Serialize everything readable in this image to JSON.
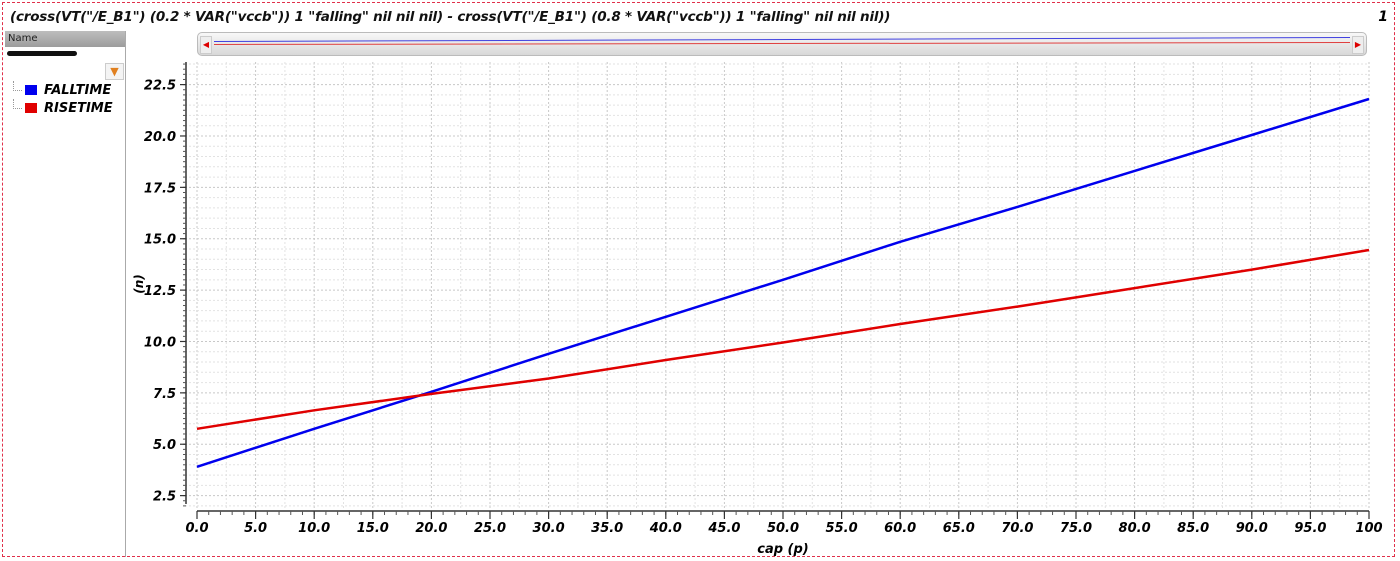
{
  "title": "(cross(VT(\"/E_B1\") (0.2 * VAR(\"vccb\")) 1 \"falling\" nil nil nil) - cross(VT(\"/E_B1\") (0.8 * VAR(\"vccb\")) 1 \"falling\" nil nil nil))",
  "subwindow_number": "1",
  "panel": {
    "name_header": "Name",
    "filter_icon": "filter-icon"
  },
  "legend": [
    {
      "label": "FALLTIME",
      "color": "#0000ee"
    },
    {
      "label": "RISETIME",
      "color": "#e00000"
    }
  ],
  "chart_data": {
    "type": "line",
    "xlabel": "cap (p)",
    "ylabel": "(n)",
    "xlim": [
      0,
      100
    ],
    "ylim": [
      1.8,
      23.6
    ],
    "xticks": [
      "0.0",
      "5.0",
      "10.0",
      "15.0",
      "20.0",
      "25.0",
      "30.0",
      "35.0",
      "40.0",
      "45.0",
      "50.0",
      "55.0",
      "60.0",
      "65.0",
      "70.0",
      "75.0",
      "80.0",
      "85.0",
      "90.0",
      "95.0",
      "100"
    ],
    "yticks": [
      "2.5",
      "5.0",
      "7.5",
      "10.0",
      "12.5",
      "15.0",
      "17.5",
      "20.0",
      "22.5"
    ],
    "grid": true,
    "legend_position": "left-panel",
    "x": [
      0,
      10,
      20,
      30,
      40,
      50,
      60,
      70,
      80,
      90,
      100
    ],
    "series": [
      {
        "name": "FALLTIME",
        "color": "#0000ee",
        "values": [
          3.9,
          5.75,
          7.55,
          9.4,
          11.2,
          13.0,
          14.85,
          16.55,
          18.3,
          20.05,
          21.8
        ]
      },
      {
        "name": "RISETIME",
        "color": "#e00000",
        "values": [
          5.75,
          6.65,
          7.45,
          8.2,
          9.1,
          9.95,
          10.85,
          11.7,
          12.6,
          13.5,
          14.45
        ]
      }
    ]
  }
}
